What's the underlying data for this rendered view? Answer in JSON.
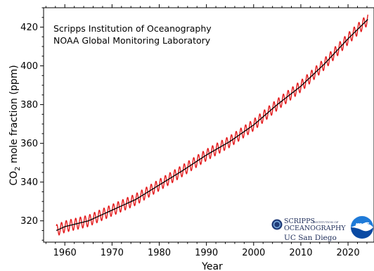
{
  "chart_data": {
    "type": "line",
    "title": "",
    "xlabel": "Year",
    "ylabel_main": "CO",
    "ylabel_sub": "2",
    "ylabel_rest": " mole fraction (ppm)",
    "xlim": [
      1955.5,
      2025.5
    ],
    "ylim": [
      309,
      430
    ],
    "x_ticks": [
      1960,
      1970,
      1980,
      1990,
      2000,
      2010,
      2020
    ],
    "y_ticks": [
      320,
      340,
      360,
      380,
      400,
      420
    ],
    "grid": false,
    "annotations": [
      "Scripps Institution of Oceanography",
      "NOAA Global Monitoring Laboratory"
    ],
    "seasonal_amplitude": 3,
    "series": [
      {
        "color": "#e41a1c",
        "style": "monthly",
        "x": [
          1958.2,
          1960,
          1965,
          1970,
          1975,
          1980,
          1985,
          1990,
          1995,
          2000,
          2005,
          2010,
          2015,
          2020,
          2024.2
        ],
        "values": [
          315,
          317,
          320,
          325.5,
          331,
          338.5,
          346,
          354,
          361,
          369.5,
          380,
          389.5,
          401,
          414,
          424
        ]
      },
      {
        "color": "#000000",
        "style": "trend",
        "x": [
          1958.2,
          1960,
          1965,
          1970,
          1975,
          1980,
          1985,
          1990,
          1995,
          2000,
          2005,
          2010,
          2015,
          2020,
          2024.2
        ],
        "values": [
          315,
          317,
          320,
          325.5,
          331,
          338.5,
          346,
          354,
          361,
          369.5,
          380,
          389.5,
          401,
          414,
          424
        ]
      }
    ]
  },
  "logos": {
    "scripps_line1": "SCRIPPS",
    "scripps_line1_small": "INSTITUTION OF",
    "scripps_line2": "OCEANOGRAPHY",
    "ucsd": "UC San Diego",
    "noaa": "NOAA"
  }
}
